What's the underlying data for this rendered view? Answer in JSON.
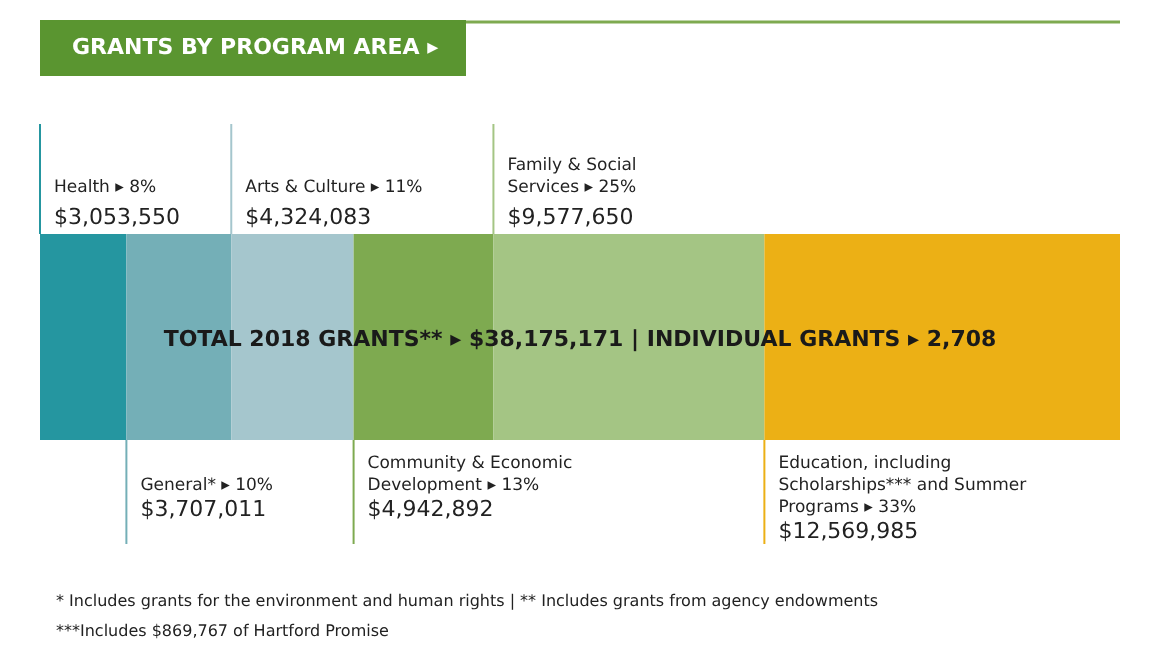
{
  "chart_data": {
    "type": "bar",
    "orientation": "horizontal",
    "stacked": true,
    "title": "GRANTS BY PROGRAM AREA ▸",
    "categories": [
      null
    ],
    "series": [
      {
        "name": "Health ▸ 8%",
        "color": "#2596a0",
        "values": [
          3053550
        ],
        "value_labels": [
          "$3,053,550"
        ]
      },
      {
        "name": "General* ▸ 10%",
        "color": "#74afb7",
        "values": [
          3707011
        ],
        "value_labels": [
          "$3,707,011"
        ]
      },
      {
        "name": "Arts & Culture ▸ 11%",
        "color": "#a5c6cd",
        "values": [
          4324083
        ],
        "value_labels": [
          "$4,324,083"
        ]
      },
      {
        "name": "Community & Economic Development ▸ 13%",
        "color": "#7eaa50",
        "values": [
          4942892
        ],
        "value_labels": [
          "$4,942,892"
        ]
      },
      {
        "name": "Family & Social Services ▸ 25%",
        "color": "#a4c584",
        "values": [
          9577650
        ],
        "value_labels": [
          "$9,577,650"
        ]
      },
      {
        "name": "Education, including Scholarships*** and Summer Programs ▸ 33%",
        "color": "#ecb015",
        "values": [
          12569985
        ],
        "value_labels": [
          "$12,569,985"
        ]
      }
    ],
    "annotations": [
      "TOTAL 2018 GRANTS** ▸ $38,175,171 | INDIVIDUAL GRANTS ▸ 2,708",
      "* Includes grants for the environment and human rights | ** Includes grants from agency endowments",
      "***Includes $869,767 of Hartford Promise"
    ]
  }
}
